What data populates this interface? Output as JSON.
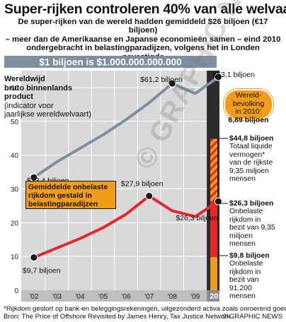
{
  "title": "Super-rijken controleren 40% van alle welvaart",
  "subtitle_lines": [
    "De super-rijken van de wereld hadden gemiddeld $26 biljoen (€17 biljoen)",
    "– meer dan de Amerikaanse en Japanse economieën samen – eind 2010",
    "ondergebracht in belastingparadijzen, volgens het in Londen gevestigde",
    "Tax Justice Network"
  ],
  "scale_banner": "$1 biljoen is $1.000.000.000.000",
  "gdp_description": [
    "Wereldwijd",
    "bruto binnenlands",
    "product",
    "(indicator voor",
    "jaarlijkse wereldwelvaart)"
  ],
  "population_box": [
    "Wereld-",
    "bevolking",
    "in 2010:",
    "6,89 biljoen"
  ],
  "hidden_box": [
    "Gemiddelde onbelaste",
    "rijkdom gestald in",
    "belastingparadijzen"
  ],
  "stack_labels": {
    "top": [
      "$44,8 biljoen",
      "Totaal liquide",
      "vermogen*",
      "van de rijkste",
      "9,35 miljoen",
      "mensen"
    ],
    "middle": [
      "$26,3 biljoen",
      "Onbelaste",
      "rijkdom in",
      "bezit van 9,35",
      "miljoen",
      "mensen"
    ],
    "bottom": [
      "$9,8 biljoen",
      "Onbelaste",
      "rijkdom in",
      "bezit van",
      "91.200",
      "mensen"
    ]
  },
  "footnote": "*Rijkdom gestort op bank-en beleggingsrekeningen, uitgezonderd activa zoals onroerend goed",
  "source": "Bron: The Price of Offshore Revisited by James Henry, Tax Justice Network",
  "credit": "© GRAPHIC NEWS",
  "watermark": "© GRAPHIC NEWS",
  "colors": {
    "gdp_line": "#7f8ea0",
    "hidden_line": "#e8262a",
    "orange": "#f39c1a",
    "red": "#e8262a",
    "banner": "#7f8ea0"
  },
  "chart_data": {
    "type": "line",
    "x": [
      "'02",
      "'03",
      "'04",
      "'05",
      "'06",
      "'07",
      "'08",
      "'09",
      "2010"
    ],
    "ylim": [
      0,
      65
    ],
    "yticks": [
      0,
      10,
      20,
      30,
      40,
      50,
      60
    ],
    "series": [
      {
        "name": "Wereldwijd bruto binnenlands product",
        "values": [
          33.4,
          38,
          42,
          46,
          50.5,
          55.5,
          61.2,
          58.2,
          63.1
        ]
      },
      {
        "name": "Gemiddelde onbelaste rijkdom gestald in belastingparadijzen",
        "values": [
          9.7,
          12.5,
          15.3,
          18.5,
          22.5,
          27.9,
          23.5,
          21.8,
          26.3
        ]
      }
    ],
    "annotations": [
      {
        "text": "$33,4 biljoen",
        "x": "'02",
        "y": 33.4
      },
      {
        "text": "$61,2 biljoen",
        "x": "'08",
        "y": 61.2
      },
      {
        "text": "$63,1 biljoen",
        "x": "2010",
        "y": 63.1
      },
      {
        "text": "$27,9 biljoen",
        "x": "'07",
        "y": 27.9
      },
      {
        "text": "$26,3 biljoen",
        "x": "2010",
        "y": 26.3
      },
      {
        "text": "$9,7 biljoen",
        "x": "'02",
        "y": 9.7
      }
    ],
    "stacked_bar_2010": [
      {
        "label": "$9,8 biljoen",
        "value": 9.8
      },
      {
        "label": "$26,3 biljoen",
        "value": 26.3
      },
      {
        "label": "$44,8 biljoen",
        "value": 44.8
      }
    ]
  }
}
